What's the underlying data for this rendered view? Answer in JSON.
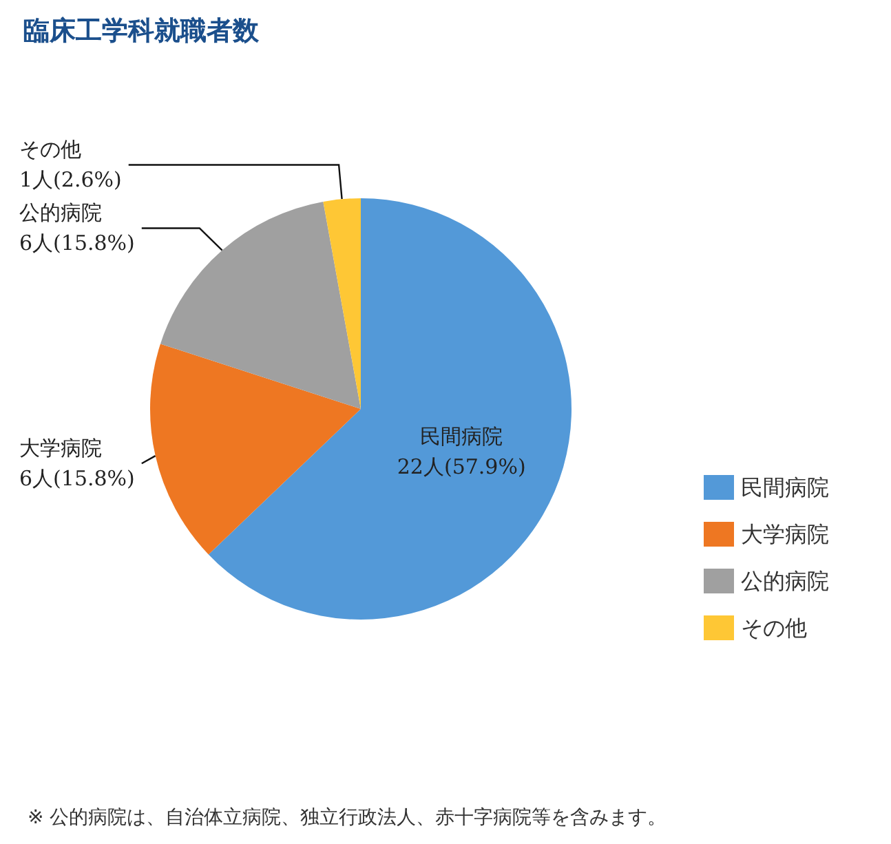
{
  "chart_data": {
    "type": "pie",
    "title": "臨床工学科就職者数",
    "categories": [
      "民間病院",
      "大学病院",
      "公的病院",
      "その他"
    ],
    "values": [
      22,
      6,
      6,
      1
    ],
    "value_labels": [
      "22人(57.9%)",
      "6人(15.8%)",
      "6人(15.8%)",
      "1人(2.6%)"
    ],
    "colors": [
      "#5399d8",
      "#ee7722",
      "#a0a0a0",
      "#fec735"
    ],
    "legend": "right",
    "annotations": [
      "※ 公的病院は、自治体立病院、独立行政法人、赤十字病院等を含みます。"
    ]
  }
}
